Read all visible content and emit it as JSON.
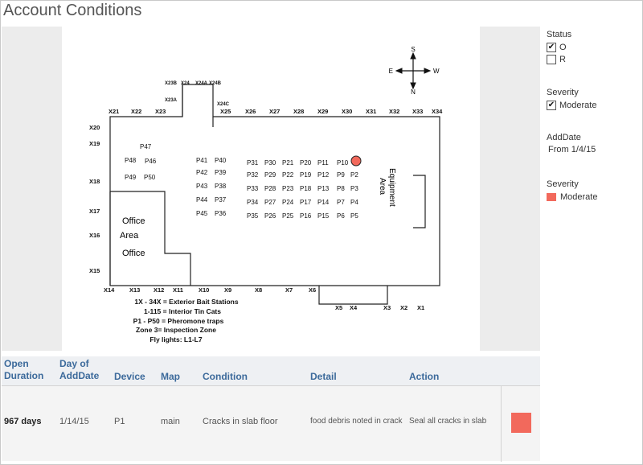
{
  "page": {
    "title": "Account Conditions"
  },
  "map": {
    "compass": {
      "n": "N",
      "s": "S",
      "e": "E",
      "w": "W"
    },
    "top_stations": [
      "X21",
      "X22",
      "X23",
      "X25",
      "X26",
      "X27",
      "X28",
      "X29",
      "X30",
      "X31",
      "X32",
      "X33",
      "X34"
    ],
    "upper_stations": [
      "X23B",
      "X24",
      "X24A",
      "X24B",
      "X23A",
      "X24C"
    ],
    "left_stations": [
      "X20",
      "X19",
      "X18",
      "X17",
      "X16",
      "X15"
    ],
    "bottom_stations": [
      "X14",
      "X13",
      "X12",
      "X11",
      "X10",
      "X9",
      "X8",
      "X7",
      "X6",
      "X5",
      "X4",
      "X3",
      "X2",
      "X1"
    ],
    "trap_columns": [
      [
        "P41",
        "P42",
        "P43",
        "P44",
        "P45"
      ],
      [
        "P40",
        "P39",
        "P38",
        "P37",
        "P36"
      ],
      [
        "P31",
        "P32",
        "P33",
        "P34",
        "P35"
      ],
      [
        "P30",
        "P29",
        "P28",
        "P27",
        "P26"
      ],
      [
        "P21",
        "P22",
        "P23",
        "P24",
        "P25"
      ],
      [
        "P20",
        "P19",
        "P18",
        "P17",
        "P16"
      ],
      [
        "P11",
        "P12",
        "P13",
        "P14",
        "P15"
      ],
      [
        "P10",
        "P9",
        "P8",
        "P7",
        "P6"
      ],
      [
        "",
        "P2",
        "P3",
        "P4",
        "P5"
      ]
    ],
    "left_traps": [
      "P47",
      "P48",
      "P46",
      "P49",
      "P50"
    ],
    "rooms": {
      "office1": "Office",
      "area": "Area",
      "office2": "Office",
      "equipment": "Equipment",
      "equipment_area": "Area"
    },
    "legend_lines": [
      "1X - 34X = Exterior Bait Stations",
      "1-115 = Interior Tin Cats",
      "P1 - P50 = Pheromone traps",
      "Zone 3= Inspection Zone",
      "Fly lights: L1-L7"
    ],
    "marker_color": "#f2695c"
  },
  "filters": {
    "status": {
      "title": "Status",
      "options": [
        {
          "label": "O",
          "checked": "✔"
        },
        {
          "label": "R",
          "checked": ""
        }
      ]
    },
    "severity": {
      "title": "Severity",
      "options": [
        {
          "label": "Moderate",
          "checked": "✔"
        }
      ]
    },
    "adddate": {
      "title": "AddDate",
      "value": "From 1/4/15"
    },
    "severity_legend": {
      "title": "Severity",
      "items": [
        {
          "label": "Moderate",
          "color": "#f2695c"
        }
      ]
    }
  },
  "table": {
    "headers": {
      "open_duration": [
        "Open",
        "Duration"
      ],
      "day_of_adddate": [
        "Day of",
        "AddDate"
      ],
      "device": "Device",
      "map": "Map",
      "condition": "Condition",
      "detail": "Detail",
      "action": "Action"
    },
    "row": {
      "open_duration": "967 days",
      "day_of_adddate": "1/14/15",
      "device": "P1",
      "map": "main",
      "condition": "Cracks in slab floor",
      "detail": "food debris noted in crack",
      "action": "Seal all cracks in slab",
      "severity_color": "#f2695c"
    }
  }
}
